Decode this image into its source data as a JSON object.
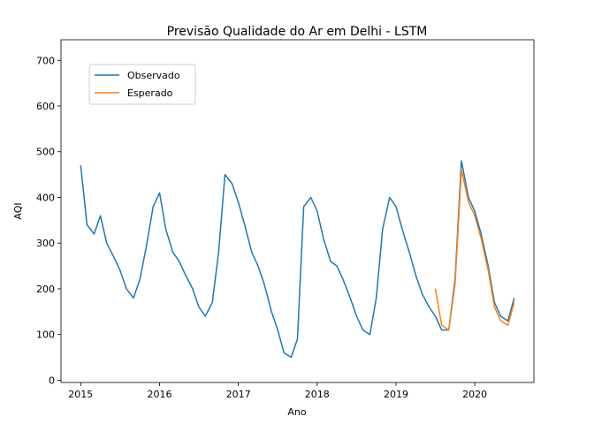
{
  "chart_data": {
    "type": "line",
    "title": "Previsão Qualidade do Ar em Delhi - LSTM",
    "xlabel": "Ano",
    "ylabel": "AQI",
    "xlim": [
      2014.75,
      2020.75
    ],
    "ylim": [
      -5,
      745
    ],
    "x_ticks": [
      2015,
      2016,
      2017,
      2018,
      2019,
      2020
    ],
    "x_tick_labels": [
      "2015",
      "2016",
      "2017",
      "2018",
      "2019",
      "2020"
    ],
    "y_ticks": [
      0,
      100,
      200,
      300,
      400,
      500,
      600,
      700
    ],
    "y_tick_labels": [
      "0",
      "100",
      "200",
      "300",
      "400",
      "500",
      "600",
      "700"
    ],
    "grid": false,
    "legend_position": "top-left",
    "colors": {
      "Observado": "#1f77b4",
      "Esperado": "#ff7f0e"
    },
    "series": [
      {
        "name": "Observado",
        "x": [
          2015.0,
          2015.08,
          2015.17,
          2015.25,
          2015.33,
          2015.42,
          2015.5,
          2015.58,
          2015.67,
          2015.75,
          2015.83,
          2015.92,
          2016.0,
          2016.08,
          2016.17,
          2016.25,
          2016.33,
          2016.42,
          2016.5,
          2016.58,
          2016.67,
          2016.75,
          2016.83,
          2016.92,
          2017.0,
          2017.08,
          2017.17,
          2017.25,
          2017.33,
          2017.42,
          2017.5,
          2017.58,
          2017.67,
          2017.75,
          2017.83,
          2017.92,
          2018.0,
          2018.08,
          2018.17,
          2018.25,
          2018.33,
          2018.42,
          2018.5,
          2018.58,
          2018.67,
          2018.75,
          2018.83,
          2018.92,
          2019.0,
          2019.08,
          2019.17,
          2019.25,
          2019.33,
          2019.42,
          2019.5,
          2019.58,
          2019.67,
          2019.75,
          2019.83,
          2019.92,
          2020.0,
          2020.08,
          2020.17,
          2020.25,
          2020.33,
          2020.42,
          2020.5
        ],
        "y": [
          470,
          340,
          320,
          360,
          300,
          270,
          240,
          200,
          180,
          220,
          290,
          380,
          410,
          330,
          280,
          260,
          230,
          200,
          160,
          140,
          170,
          280,
          450,
          430,
          390,
          340,
          280,
          250,
          210,
          150,
          110,
          60,
          50,
          90,
          380,
          400,
          370,
          310,
          260,
          250,
          220,
          180,
          140,
          110,
          100,
          180,
          330,
          400,
          380,
          330,
          280,
          230,
          190,
          160,
          140,
          110,
          110,
          220,
          480,
          400,
          370,
          320,
          250,
          170,
          140,
          130,
          180
        ]
      },
      {
        "name": "Esperado",
        "x": [
          2019.5,
          2019.58,
          2019.67,
          2019.75,
          2019.83,
          2019.92,
          2020.0,
          2020.08,
          2020.17,
          2020.25,
          2020.33,
          2020.42,
          2020.5
        ],
        "y": [
          200,
          120,
          110,
          210,
          460,
          390,
          360,
          310,
          240,
          160,
          130,
          120,
          170
        ]
      }
    ]
  }
}
